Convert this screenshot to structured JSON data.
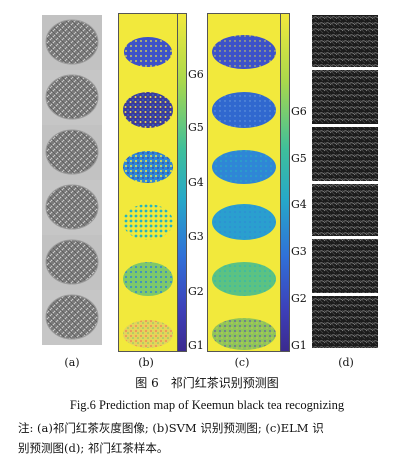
{
  "panels": [
    {
      "label": "(a)"
    },
    {
      "label": "(b)"
    },
    {
      "label": "(c)"
    },
    {
      "label": "(d)"
    }
  ],
  "colorbar_b": {
    "ticks": [
      "G6",
      "G5",
      "G4",
      "G3",
      "G2",
      "G1"
    ]
  },
  "colorbar_c": {
    "ticks": [
      "G6",
      "G5",
      "G4",
      "G3",
      "G2",
      "G1"
    ]
  },
  "caption": {
    "zh": "图 6　祁门红茶识别预测图",
    "en": "Fig.6    Prediction map of Keemun black tea recognizing",
    "note_line1": "注: (a)祁门红茶灰度图像; (b)SVM 识别预测图; (c)ELM 识",
    "note_line2": "别预测图(d); 祁门红茶样本。"
  },
  "colors": {
    "background_map": "#f2e93c",
    "g1": "#3b2a8f",
    "g2": "#3d52c9",
    "g3": "#2f86d6",
    "g4": "#26b4c0",
    "g5": "#7ec86a",
    "g6": "#f2e93c"
  }
}
